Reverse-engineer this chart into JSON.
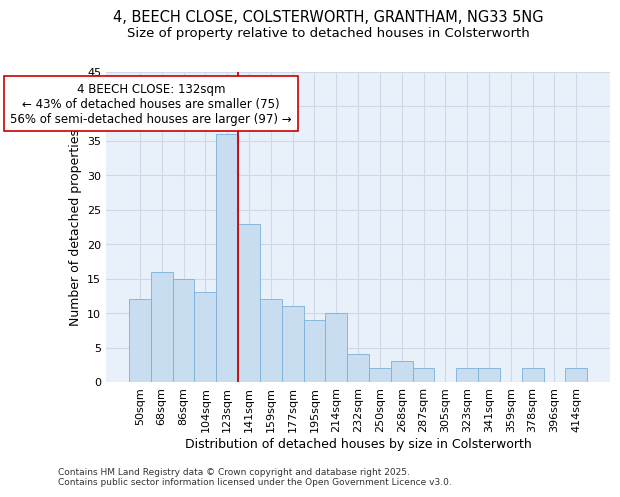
{
  "title_line1": "4, BEECH CLOSE, COLSTERWORTH, GRANTHAM, NG33 5NG",
  "title_line2": "Size of property relative to detached houses in Colsterworth",
  "xlabel": "Distribution of detached houses by size in Colsterworth",
  "ylabel": "Number of detached properties",
  "bar_color": "#c8ddf0",
  "bar_edge_color": "#7ab0d8",
  "grid_color": "#d0d8e8",
  "background_color": "#e8f0fa",
  "categories": [
    "50sqm",
    "68sqm",
    "86sqm",
    "104sqm",
    "123sqm",
    "141sqm",
    "159sqm",
    "177sqm",
    "195sqm",
    "214sqm",
    "232sqm",
    "250sqm",
    "268sqm",
    "287sqm",
    "305sqm",
    "323sqm",
    "341sqm",
    "359sqm",
    "378sqm",
    "396sqm",
    "414sqm"
  ],
  "values": [
    12,
    16,
    15,
    13,
    36,
    23,
    12,
    11,
    9,
    10,
    4,
    2,
    3,
    2,
    0,
    2,
    2,
    0,
    2,
    0,
    2
  ],
  "ylim": [
    0,
    45
  ],
  "yticks": [
    0,
    5,
    10,
    15,
    20,
    25,
    30,
    35,
    40,
    45
  ],
  "annotation_text": "4 BEECH CLOSE: 132sqm\n← 43% of detached houses are smaller (75)\n56% of semi-detached houses are larger (97) →",
  "vline_index": 5,
  "vline_color": "#cc0000",
  "annotation_box_color": "#ffffff",
  "annotation_box_edge": "#cc0000",
  "footer_text": "Contains HM Land Registry data © Crown copyright and database right 2025.\nContains public sector information licensed under the Open Government Licence v3.0.",
  "title_fontsize": 10.5,
  "subtitle_fontsize": 9.5,
  "axis_label_fontsize": 9,
  "tick_fontsize": 8,
  "annotation_fontsize": 8.5
}
